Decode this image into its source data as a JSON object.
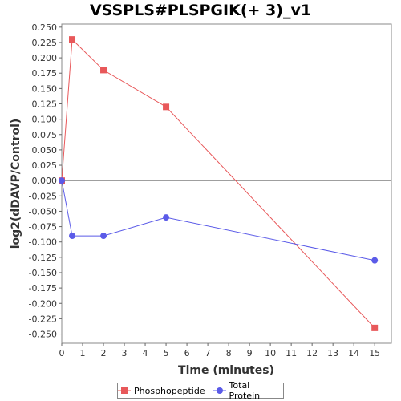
{
  "chart_data": {
    "type": "line",
    "title": "VSSPLS#PLSPGIK(+ 3)_v1",
    "xlabel": "Time (minutes)",
    "ylabel": "log2(dDAVP/Control)",
    "xlim": [
      0,
      15.8
    ],
    "ylim": [
      -0.265,
      0.255
    ],
    "xticks": [
      0,
      1,
      2,
      3,
      4,
      5,
      6,
      7,
      8,
      9,
      10,
      11,
      12,
      13,
      14,
      15
    ],
    "yticks": [
      0.25,
      0.225,
      0.2,
      0.175,
      0.15,
      0.125,
      0.1,
      0.075,
      0.05,
      0.025,
      0.0,
      -0.025,
      -0.05,
      -0.075,
      -0.1,
      -0.125,
      -0.15,
      -0.175,
      -0.2,
      -0.225,
      -0.25
    ],
    "ytick_labels": [
      "0.250",
      "0.225",
      "0.200",
      "0.175",
      "0.150",
      "0.125",
      "0.100",
      "0.075",
      "0.050",
      "0.025",
      "0.000",
      "-0.025",
      "-0.050",
      "-0.075",
      "-0.100",
      "-0.125",
      "-0.150",
      "-0.175",
      "-0.200",
      "-0.225",
      "-0.250"
    ],
    "grid": false,
    "legend_position": "bottom",
    "series": [
      {
        "name": "Phosphopeptide",
        "color": "#e8585a",
        "marker": "square",
        "x": [
          0,
          0.5,
          2,
          5,
          15
        ],
        "y": [
          0.0,
          0.23,
          0.18,
          0.12,
          -0.24
        ]
      },
      {
        "name": "Total Protein",
        "color": "#5b5be8",
        "marker": "circle",
        "x": [
          0,
          0.5,
          2,
          5,
          15
        ],
        "y": [
          0.0,
          -0.09,
          -0.09,
          -0.06,
          -0.13
        ]
      }
    ]
  }
}
